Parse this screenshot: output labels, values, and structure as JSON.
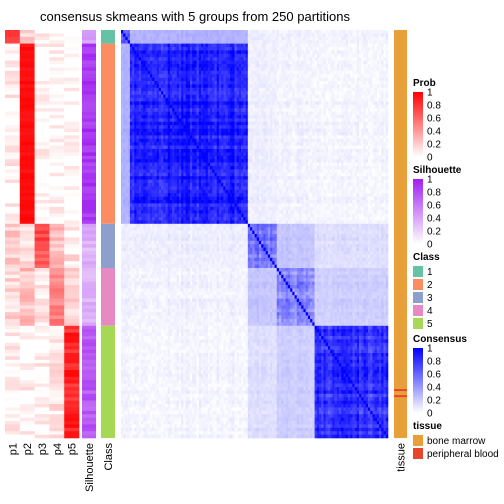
{
  "title": "consensus skmeans with 5 groups from 250 partitions",
  "colors": {
    "prob_high": "#ff0000",
    "prob_low": "#ffffff",
    "silhouette_high": "#a020f0",
    "consensus_high": "#0000ff",
    "class_1": "#66c2a5",
    "class_2": "#fc8d62",
    "class_3": "#8da0cb",
    "class_4": "#e78ac3",
    "class_5": "#a6d854",
    "tissue_bone_marrow": "#e8a03a",
    "tissue_peripheral_blood": "#e8452c"
  },
  "chart_data": {
    "type": "heatmap",
    "column_labels": [
      "p1",
      "p2",
      "p3",
      "p4",
      "p5",
      "Silhouette",
      "Class",
      "tissue"
    ],
    "class_groups": [
      {
        "class": 1,
        "fraction": 0.035
      },
      {
        "class": 2,
        "fraction": 0.44
      },
      {
        "class": 3,
        "fraction": 0.105
      },
      {
        "class": 4,
        "fraction": 0.14
      },
      {
        "class": 5,
        "fraction": 0.28
      }
    ],
    "group_mean_consensus": [
      [
        0.65,
        0.3,
        0.06,
        0.05,
        0.04
      ],
      [
        0.3,
        0.88,
        0.06,
        0.04,
        0.03
      ],
      [
        0.06,
        0.06,
        0.55,
        0.22,
        0.12
      ],
      [
        0.05,
        0.04,
        0.22,
        0.45,
        0.18
      ],
      [
        0.04,
        0.03,
        0.12,
        0.18,
        0.8
      ]
    ],
    "group_membership_prob": [
      [
        0.8,
        0.2,
        0.05,
        0.05,
        0.02
      ],
      [
        0.05,
        0.95,
        0.02,
        0.02,
        0.01
      ],
      [
        0.2,
        0.15,
        0.7,
        0.25,
        0.1
      ],
      [
        0.15,
        0.25,
        0.1,
        0.5,
        0.2
      ],
      [
        0.05,
        0.05,
        0.05,
        0.1,
        0.85
      ]
    ],
    "group_silhouette": [
      0.45,
      0.9,
      0.35,
      0.35,
      0.75
    ],
    "tissue_peripheral_blood_positions": [
      0.88,
      0.895
    ],
    "legends": [
      {
        "title": "Prob",
        "type": "continuous",
        "range": [
          0,
          1
        ],
        "ticks": [
          "1",
          "0.8",
          "0.6",
          "0.4",
          "0.2",
          "0"
        ],
        "color": "prob_high"
      },
      {
        "title": "Silhouette",
        "type": "continuous",
        "range": [
          0,
          1
        ],
        "ticks": [
          "1",
          "0.8",
          "0.6",
          "0.4",
          "0.2",
          "0"
        ],
        "color": "silhouette_high"
      },
      {
        "title": "Class",
        "type": "categorical",
        "items": [
          {
            "label": "1",
            "color": "class_1"
          },
          {
            "label": "2",
            "color": "class_2"
          },
          {
            "label": "3",
            "color": "class_3"
          },
          {
            "label": "4",
            "color": "class_4"
          },
          {
            "label": "5",
            "color": "class_5"
          }
        ]
      },
      {
        "title": "Consensus",
        "type": "continuous",
        "range": [
          0,
          1
        ],
        "ticks": [
          "1",
          "0.8",
          "0.6",
          "0.4",
          "0.2",
          "0"
        ],
        "color": "consensus_high"
      },
      {
        "title": "tissue",
        "type": "categorical",
        "items": [
          {
            "label": "bone marrow",
            "color": "tissue_bone_marrow"
          },
          {
            "label": "peripheral blood",
            "color": "tissue_peripheral_blood"
          }
        ]
      }
    ]
  }
}
